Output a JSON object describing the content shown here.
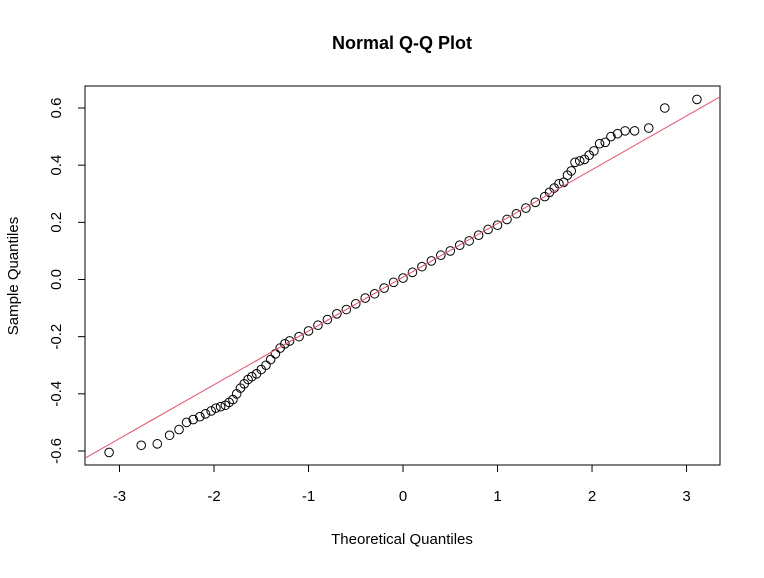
{
  "chart_data": {
    "type": "scatter",
    "title": "Normal Q-Q Plot",
    "x_label": "Theoretical Quantiles",
    "y_label": "Sample Quantiles",
    "xlim": [
      -3.365,
      3.354
    ],
    "ylim": [
      -0.649,
      0.677
    ],
    "xticks": [
      -3,
      -2,
      -1,
      0,
      1,
      2,
      3
    ],
    "yticks": [
      -0.6,
      -0.4,
      -0.2,
      {
        "value": 0,
        "label": "0.0"
      },
      0.2,
      0.4,
      0.6
    ],
    "series": [
      {
        "color": "#000000",
        "x": [
          -3.11,
          -2.77,
          -2.6,
          -2.47,
          -2.37,
          -2.29,
          -2.22,
          -2.15,
          -2.09,
          -2.03,
          -1.98,
          -1.93,
          -1.88,
          -1.84,
          -1.8,
          -1.76,
          -1.72,
          -1.68,
          -1.64,
          -1.6,
          -1.55,
          -1.5,
          -1.45,
          -1.4,
          -1.35,
          -1.3,
          -1.25,
          -1.2,
          -1.1,
          -1.0,
          -0.9,
          -0.8,
          -0.7,
          -0.6,
          -0.5,
          -0.4,
          -0.3,
          -0.2,
          -0.1,
          0,
          0.1,
          0.2,
          0.3,
          0.4,
          0.5,
          0.6,
          0.7,
          0.8,
          0.9,
          1.0,
          1.1,
          1.2,
          1.3,
          1.4,
          1.5,
          1.55,
          1.6,
          1.65,
          1.7,
          1.74,
          1.78,
          1.82,
          1.87,
          1.92,
          1.97,
          2.02,
          2.08,
          2.14,
          2.2,
          2.27,
          2.35,
          2.45,
          2.6,
          2.77,
          3.11
        ],
        "values": [
          -0.605,
          -0.58,
          -0.575,
          -0.545,
          -0.525,
          -0.5,
          -0.49,
          -0.48,
          -0.47,
          -0.46,
          -0.45,
          -0.445,
          -0.44,
          -0.43,
          -0.42,
          -0.4,
          -0.38,
          -0.365,
          -0.35,
          -0.34,
          -0.33,
          -0.315,
          -0.3,
          -0.28,
          -0.26,
          -0.24,
          -0.225,
          -0.215,
          -0.2,
          -0.18,
          -0.16,
          -0.14,
          -0.12,
          -0.105,
          -0.085,
          -0.065,
          -0.05,
          -0.03,
          -0.01,
          0.005,
          0.025,
          0.045,
          0.065,
          0.085,
          0.1,
          0.12,
          0.135,
          0.155,
          0.175,
          0.19,
          0.21,
          0.23,
          0.25,
          0.27,
          0.29,
          0.305,
          0.32,
          0.335,
          0.34,
          0.365,
          0.38,
          0.41,
          0.415,
          0.42,
          0.435,
          0.45,
          0.475,
          0.48,
          0.5,
          0.51,
          0.52,
          0.52,
          0.53,
          0.6,
          0.63
        ]
      }
    ],
    "reference_line": {
      "color": "#df536b",
      "x": [
        -3.365,
        3.354
      ],
      "values": [
        -0.625,
        0.639
      ]
    }
  }
}
